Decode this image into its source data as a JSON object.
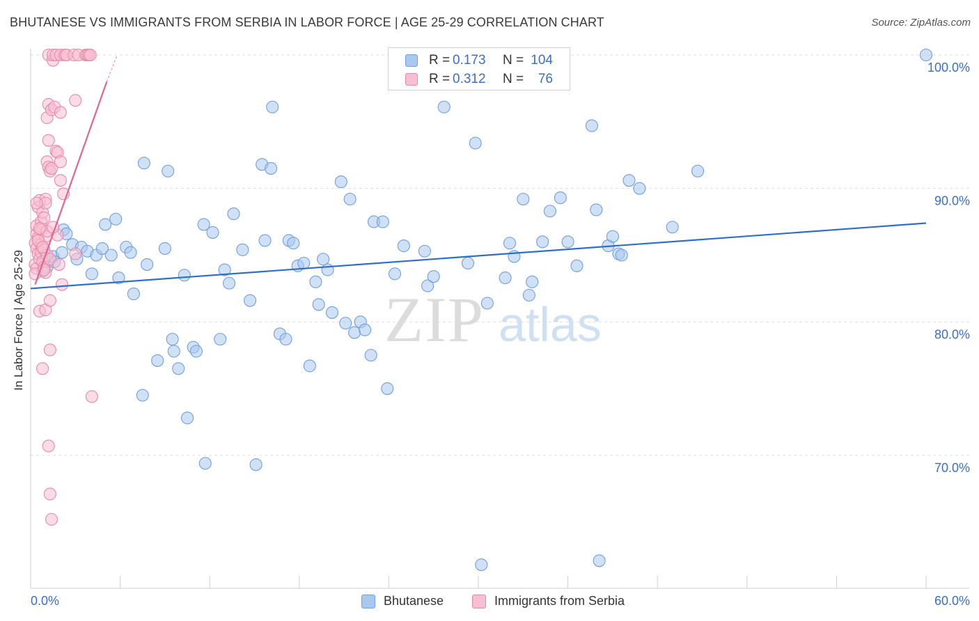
{
  "title": "BHUTANESE VS IMMIGRANTS FROM SERBIA IN LABOR FORCE | AGE 25-29 CORRELATION CHART",
  "source": "Source: ZipAtlas.com",
  "watermark": {
    "zip": "ZIP",
    "atlas": "atlas"
  },
  "legend": {
    "rows": [
      {
        "r_label": "R =",
        "r_value": "0.173",
        "n_label": "N =",
        "n_value": "104",
        "color": "#a9c8ef",
        "border": "#6f9fe0"
      },
      {
        "r_label": "R =",
        "r_value": "0.312",
        "n_label": "N =",
        "n_value": "76",
        "color": "#f7bfd1",
        "border": "#e78aa8"
      }
    ]
  },
  "bottom_legend": [
    {
      "label": "Bhutanese",
      "color": "#a9c8ef",
      "border": "#6f9fe0"
    },
    {
      "label": "Immigrants from Serbia",
      "color": "#f7bfd1",
      "border": "#e78aa8"
    }
  ],
  "chart_data": {
    "type": "scatter",
    "title": "BHUTANESE VS IMMIGRANTS FROM SERBIA IN LABOR FORCE | AGE 25-29 CORRELATION CHART",
    "xlabel": "",
    "ylabel": "In Labor Force | Age 25-29",
    "xlim": [
      0,
      60
    ],
    "ylim": [
      61.5,
      101
    ],
    "x_tick_labels": [
      "0.0%",
      "60.0%"
    ],
    "y_ticks": [
      70,
      80,
      90,
      100
    ],
    "y_tick_labels": [
      "70.0%",
      "80.0%",
      "90.0%",
      "100.0%"
    ],
    "grid": "horizontal dashed",
    "legend_placement": "top-center",
    "series": [
      {
        "name": "Bhutanese",
        "color": "#6f9fe0",
        "fill": "#a9c8ef",
        "trend": {
          "x": [
            0,
            60
          ],
          "y": [
            82.5,
            87.4
          ]
        },
        "points": [
          [
            1.0,
            84.8
          ],
          [
            1.1,
            84.1
          ],
          [
            1.5,
            84.9
          ],
          [
            2.1,
            85.2
          ],
          [
            2.2,
            86.9
          ],
          [
            2.4,
            86.6
          ],
          [
            2.8,
            85.8
          ],
          [
            3.1,
            84.7
          ],
          [
            3.4,
            85.6
          ],
          [
            3.8,
            85.3
          ],
          [
            4.1,
            83.6
          ],
          [
            4.4,
            85.0
          ],
          [
            4.8,
            85.5
          ],
          [
            5.0,
            87.3
          ],
          [
            5.4,
            85.0
          ],
          [
            5.7,
            87.7
          ],
          [
            5.9,
            83.3
          ],
          [
            6.4,
            85.6
          ],
          [
            6.7,
            85.2
          ],
          [
            6.9,
            82.1
          ],
          [
            7.5,
            74.5
          ],
          [
            7.6,
            91.9
          ],
          [
            7.8,
            84.3
          ],
          [
            8.5,
            77.1
          ],
          [
            9.0,
            85.5
          ],
          [
            9.2,
            91.3
          ],
          [
            9.5,
            78.7
          ],
          [
            9.6,
            77.8
          ],
          [
            9.9,
            76.5
          ],
          [
            10.3,
            83.5
          ],
          [
            10.5,
            72.8
          ],
          [
            10.9,
            78.1
          ],
          [
            11.1,
            77.8
          ],
          [
            11.6,
            87.3
          ],
          [
            11.7,
            69.4
          ],
          [
            12.2,
            86.7
          ],
          [
            12.7,
            78.7
          ],
          [
            13.0,
            83.9
          ],
          [
            13.3,
            82.9
          ],
          [
            13.6,
            88.1
          ],
          [
            14.2,
            85.4
          ],
          [
            14.7,
            81.6
          ],
          [
            15.1,
            69.3
          ],
          [
            15.5,
            91.8
          ],
          [
            15.7,
            86.1
          ],
          [
            16.1,
            91.5
          ],
          [
            16.2,
            96.1
          ],
          [
            16.7,
            79.1
          ],
          [
            17.1,
            78.7
          ],
          [
            17.3,
            86.1
          ],
          [
            17.6,
            85.9
          ],
          [
            17.9,
            84.2
          ],
          [
            18.3,
            84.4
          ],
          [
            18.7,
            76.7
          ],
          [
            19.1,
            83.0
          ],
          [
            19.3,
            81.3
          ],
          [
            19.6,
            84.7
          ],
          [
            19.9,
            83.9
          ],
          [
            20.2,
            80.7
          ],
          [
            20.8,
            90.5
          ],
          [
            21.1,
            79.9
          ],
          [
            21.4,
            89.2
          ],
          [
            21.7,
            79.2
          ],
          [
            22.1,
            80.0
          ],
          [
            22.4,
            79.4
          ],
          [
            22.8,
            77.5
          ],
          [
            23.0,
            87.5
          ],
          [
            23.6,
            87.5
          ],
          [
            23.9,
            75.0
          ],
          [
            24.4,
            83.6
          ],
          [
            25.0,
            85.7
          ],
          [
            26.4,
            85.3
          ],
          [
            26.6,
            82.7
          ],
          [
            27.0,
            83.4
          ],
          [
            27.7,
            96.1
          ],
          [
            29.3,
            84.4
          ],
          [
            29.8,
            93.4
          ],
          [
            30.2,
            61.8
          ],
          [
            30.6,
            81.4
          ],
          [
            31.8,
            83.3
          ],
          [
            32.1,
            85.9
          ],
          [
            32.4,
            84.9
          ],
          [
            33.0,
            89.2
          ],
          [
            33.4,
            82.0
          ],
          [
            33.6,
            83.0
          ],
          [
            34.3,
            86.0
          ],
          [
            34.8,
            88.3
          ],
          [
            35.5,
            89.3
          ],
          [
            36.0,
            86.0
          ],
          [
            36.6,
            84.2
          ],
          [
            37.6,
            94.7
          ],
          [
            37.9,
            88.4
          ],
          [
            38.1,
            62.1
          ],
          [
            38.7,
            85.7
          ],
          [
            39.0,
            86.4
          ],
          [
            39.4,
            85.1
          ],
          [
            39.6,
            85.0
          ],
          [
            40.1,
            90.6
          ],
          [
            40.8,
            90.0
          ],
          [
            43.0,
            87.1
          ],
          [
            44.7,
            91.3
          ],
          [
            60.0,
            100.0
          ],
          [
            0.8,
            83.8
          ],
          [
            1.6,
            84.5
          ]
        ]
      },
      {
        "name": "Immigrants from Serbia",
        "color": "#e78aa8",
        "fill": "#f7bfd1",
        "trend": {
          "x": [
            0.3,
            5.1
          ],
          "y": [
            82.8,
            98.0
          ]
        },
        "trend_dashed": {
          "x": [
            5.1,
            5.8
          ],
          "y": [
            98.0,
            100.0
          ]
        },
        "points": [
          [
            0.3,
            84.3
          ],
          [
            0.3,
            85.9
          ],
          [
            0.4,
            86.6
          ],
          [
            0.4,
            87.2
          ],
          [
            0.4,
            85.5
          ],
          [
            0.4,
            84.0
          ],
          [
            0.5,
            88.6
          ],
          [
            0.5,
            86.3
          ],
          [
            0.5,
            85.1
          ],
          [
            0.6,
            84.7
          ],
          [
            0.6,
            80.8
          ],
          [
            0.6,
            89.1
          ],
          [
            0.7,
            87.5
          ],
          [
            0.7,
            86.9
          ],
          [
            0.7,
            85.8
          ],
          [
            0.7,
            85.2
          ],
          [
            0.8,
            84.5
          ],
          [
            0.8,
            88.2
          ],
          [
            0.8,
            76.5
          ],
          [
            0.9,
            87.8
          ],
          [
            0.9,
            85.4
          ],
          [
            0.9,
            84.1
          ],
          [
            1.0,
            89.2
          ],
          [
            1.0,
            86.4
          ],
          [
            1.0,
            83.7
          ],
          [
            1.0,
            80.9
          ],
          [
            1.1,
            92.0
          ],
          [
            1.1,
            86.8
          ],
          [
            1.1,
            85.0
          ],
          [
            1.1,
            95.3
          ],
          [
            1.2,
            96.3
          ],
          [
            1.2,
            93.6
          ],
          [
            1.2,
            91.6
          ],
          [
            1.2,
            70.7
          ],
          [
            1.2,
            100.0
          ],
          [
            1.3,
            81.6
          ],
          [
            1.3,
            91.3
          ],
          [
            1.3,
            84.7
          ],
          [
            1.3,
            77.9
          ],
          [
            1.3,
            67.1
          ],
          [
            1.4,
            95.9
          ],
          [
            1.4,
            65.2
          ],
          [
            1.4,
            91.5
          ],
          [
            1.5,
            99.6
          ],
          [
            1.5,
            100.0
          ],
          [
            1.6,
            96.1
          ],
          [
            1.7,
            100.0
          ],
          [
            1.7,
            92.8
          ],
          [
            1.8,
            92.7
          ],
          [
            1.8,
            86.5
          ],
          [
            1.9,
            84.3
          ],
          [
            2.0,
            100.0
          ],
          [
            2.0,
            95.7
          ],
          [
            2.0,
            90.6
          ],
          [
            2.0,
            92.0
          ],
          [
            2.1,
            82.8
          ],
          [
            2.2,
            89.6
          ],
          [
            2.3,
            100.0
          ],
          [
            2.4,
            100.0
          ],
          [
            2.9,
            100.0
          ],
          [
            3.0,
            96.6
          ],
          [
            3.0,
            85.1
          ],
          [
            3.2,
            100.0
          ],
          [
            3.7,
            100.0
          ],
          [
            3.8,
            100.0
          ],
          [
            3.9,
            100.0
          ],
          [
            4.0,
            100.0
          ],
          [
            4.1,
            74.4
          ],
          [
            0.3,
            83.6
          ],
          [
            0.5,
            86.1
          ],
          [
            0.6,
            87.0
          ],
          [
            0.9,
            83.9
          ],
          [
            1.0,
            88.9
          ],
          [
            0.4,
            88.9
          ],
          [
            1.5,
            87.1
          ],
          [
            0.8,
            85.6
          ]
        ]
      }
    ]
  }
}
